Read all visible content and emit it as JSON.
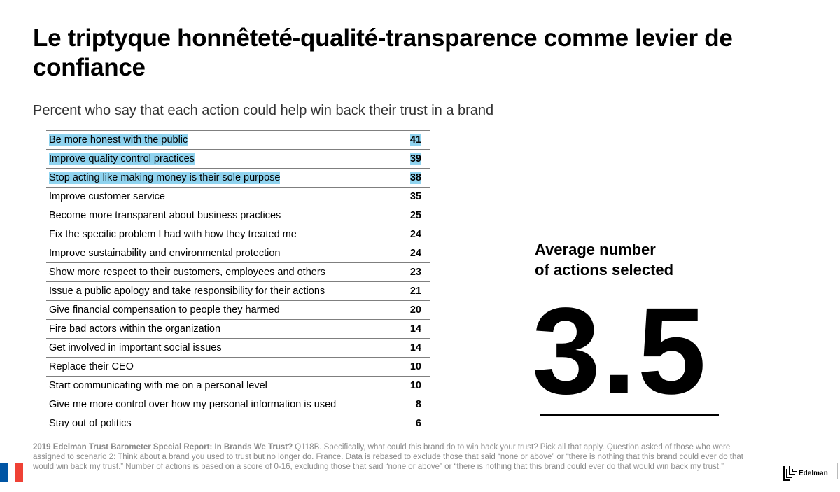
{
  "title": "Le triptyque honnêteté-qualité-transparence comme levier de confiance",
  "subtitle": "Percent who say that each action could help win back their trust in a brand",
  "chart_data": {
    "type": "table",
    "categories": [
      "Be more honest with the public",
      "Improve quality control practices",
      "Stop acting like making money is their sole purpose",
      "Improve customer service",
      "Become more transparent about business practices",
      "Fix the specific problem I had with how they treated me",
      "Improve sustainability and environmental protection",
      "Show more respect to their customers, employees and others",
      "Issue a public apology and take responsibility for their actions",
      "Give financial compensation to people they harmed",
      "Fire bad actors within the organization",
      "Get involved in important social issues",
      "Replace their CEO",
      "Start communicating with me on a personal level",
      "Give me more control over how my personal information is used",
      "Stay out of politics"
    ],
    "values": [
      41,
      39,
      38,
      35,
      25,
      24,
      24,
      23,
      21,
      20,
      14,
      14,
      10,
      10,
      8,
      6
    ],
    "highlighted": [
      true,
      true,
      true,
      false,
      false,
      false,
      false,
      false,
      false,
      false,
      false,
      false,
      false,
      false,
      false,
      false
    ],
    "highlight_color": "#8fd3ef"
  },
  "average": {
    "label_line1": "Average number",
    "label_line2": "of actions selected",
    "value": "3.5"
  },
  "footnote": {
    "source_bold": "2019 Edelman Trust Barometer Special Report: In Brands We Trust?",
    "text": " Q118B. Specifically, what could this brand do to win back your trust? Pick all that apply. Question asked of those who were assigned to scenario 2: Think about a brand you used to trust but no longer do. France. Data is rebased to exclude those that said “none or above” or “there is nothing that this brand could ever do that would win back my trust.” Number of actions is based on a score of 0-16, excluding those that said “none or above” or “there is nothing that this brand could ever do that would win back my trust.”"
  },
  "logo": {
    "text": "Edelman",
    "icon": "edelman-logo-icon"
  },
  "flag": {
    "icon": "france-flag-icon",
    "colors": [
      "#0055a4",
      "#ffffff",
      "#ef4135"
    ]
  }
}
